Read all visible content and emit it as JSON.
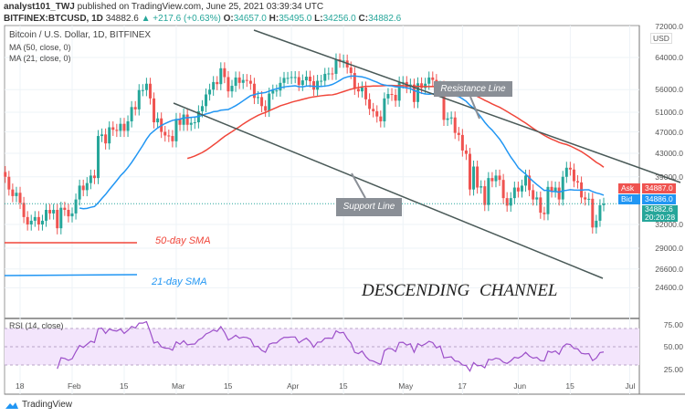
{
  "header": {
    "publisher": "analyst101_TWJ",
    "published_text": "published on TradingView.com, June 25, 2021 03:39:34 UTC",
    "symbol": "BITFINEX:BTCUSD, 1D",
    "last": "34882.6",
    "change": "▲ +217.6 (+0.63%)",
    "o": "34657.0",
    "h": "35495.0",
    "l": "34256.0",
    "c": "34882.6"
  },
  "legend": {
    "title": "Bitcoin / U.S. Dollar, 1D, BITFINEX",
    "ma50": "MA (50, close, 0)",
    "ma21": "MA (21, close, 0)",
    "rsi": "RSI (14, close)"
  },
  "price_axis": {
    "currency": "USD",
    "ticks": [
      "72000.0",
      "64000.0",
      "56000.0",
      "51000.0",
      "47000.0",
      "43000.0",
      "39000.0",
      "32000.0",
      "29000.0",
      "26600.0",
      "24600.0"
    ],
    "ask_label": "Ask",
    "ask": "34887.0",
    "bid_label": "Bid",
    "bid": "34886.0",
    "last": "34882.6",
    "countdown": "20:20:28"
  },
  "rsi_axis": [
    "75.00",
    "50.00",
    "25.00"
  ],
  "time_axis": [
    "18",
    "Feb",
    "15",
    "Mar",
    "15",
    "Apr",
    "15",
    "May",
    "17",
    "Jun",
    "15",
    "Jul"
  ],
  "annotations": {
    "resistance": "Resistance Line",
    "support": "Support Line",
    "sma50": "50-day SMA",
    "sma21": "21-day SMA",
    "channel": "DESCENDING CHANNEL"
  },
  "footer": {
    "brand": "TradingView"
  },
  "colors": {
    "up": "#26a69a",
    "down": "#ef5350",
    "ma50": "#f0463a",
    "ma21": "#2196f3",
    "rsi": "#9c4fc9",
    "rsi_band": "#f3e5fc",
    "channel": "#4a5a58"
  },
  "chart_data": {
    "type": "candlestick",
    "start_date": "2021-01-14",
    "end_date": "2021-06-24",
    "scale": "log",
    "closes": [
      39000,
      37000,
      36000,
      36500,
      35000,
      33000,
      32000,
      32500,
      33000,
      32000,
      32500,
      34000,
      33500,
      34000,
      31500,
      34300,
      34000,
      33100,
      33500,
      35500,
      37600,
      36900,
      38000,
      39200,
      38800,
      46200,
      46500,
      44800,
      47900,
      47400,
      47200,
      48600,
      47200,
      49100,
      52100,
      51600,
      55900,
      55900,
      57400,
      54000,
      48900,
      49700,
      47000,
      46300,
      46200,
      45200,
      49600,
      48400,
      50500,
      48400,
      48800,
      48900,
      51200,
      52300,
      54900,
      56000,
      57800,
      57300,
      61200,
      59000,
      55600,
      56900,
      58900,
      57600,
      58300,
      58100,
      57400,
      54100,
      54300,
      52300,
      51300,
      55100,
      55800,
      55800,
      57600,
      58800,
      58800,
      59000,
      59000,
      57100,
      58200,
      59100,
      58000,
      56000,
      58100,
      58100,
      59800,
      59900,
      59800,
      63500,
      62900,
      63200,
      61400,
      60000,
      56200,
      55600,
      56500,
      53800,
      51700,
      51200,
      50100,
      49100,
      54000,
      55000,
      54800,
      53500,
      57700,
      57800,
      56600,
      57200,
      53200,
      57500,
      56400,
      57400,
      58900,
      58300,
      55800,
      56700,
      49400,
      49700,
      49900,
      46800,
      46400,
      43500,
      42900,
      37000,
      40700,
      37300,
      37500,
      34700,
      38800,
      38300,
      39200,
      38500,
      35700,
      34600,
      35700,
      37300,
      36700,
      37600,
      39200,
      36900,
      35500,
      35800,
      33600,
      33400,
      37400,
      36700,
      37300,
      35500,
      39000,
      40500,
      40200,
      38300,
      38100,
      35800,
      35500,
      35600,
      31600,
      32500,
      34665,
      34882.6
    ]
  }
}
